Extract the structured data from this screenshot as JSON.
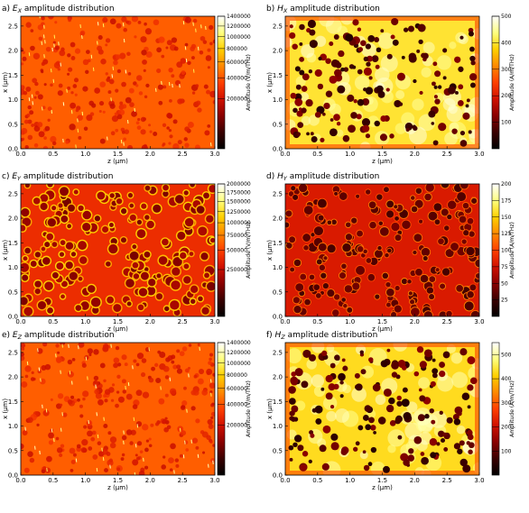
{
  "chart_data": [
    {
      "type": "heatmap",
      "title": "a) E_X amplitude distribution",
      "title_prefix": "a) ",
      "title_symbol": "E",
      "title_sub": "X",
      "title_suffix": " amplitude distribution",
      "xlabel": "z (μm)",
      "ylabel": "x (μm)",
      "xlim": [
        0.0,
        3.0
      ],
      "ylim": [
        0.0,
        2.7
      ],
      "xticks": [
        "0.0",
        "0.5",
        "1.0",
        "1.5",
        "2.0",
        "2.5",
        "3.0"
      ],
      "yticks": [
        "0.0",
        "0.5",
        "1.0",
        "1.5",
        "2.0",
        "2.5"
      ],
      "colorbar": {
        "label": "Amplitude (V/m/THz)",
        "scale": "sqrt",
        "range": [
          0,
          1400000
        ],
        "ticks": [
          "200000",
          "400000",
          "600000",
          "800000",
          "1000000",
          "1200000",
          "1400000"
        ],
        "tick_values": [
          200000,
          400000,
          600000,
          800000,
          1000000,
          1200000,
          1400000
        ]
      },
      "style": "e-dense",
      "base_level": 0.55
    },
    {
      "type": "heatmap",
      "title": "b) H_X amplitude distribution",
      "title_prefix": "b) ",
      "title_symbol": "H",
      "title_sub": "X",
      "title_suffix": " amplitude distribution",
      "xlabel": "z (μm)",
      "ylabel": "x (μm)",
      "xlim": [
        0.0,
        3.0
      ],
      "ylim": [
        0.0,
        2.7
      ],
      "xticks": [
        "0.0",
        "0.5",
        "1.0",
        "1.5",
        "2.0",
        "2.5",
        "3.0"
      ],
      "yticks": [
        "0.0",
        "0.5",
        "1.0",
        "1.5",
        "2.0",
        "2.5"
      ],
      "colorbar": {
        "label": "Amplitude (A/m/THz)",
        "scale": "linear",
        "range": [
          0,
          500
        ],
        "ticks": [
          "100",
          "200",
          "300",
          "400",
          "500"
        ],
        "tick_values": [
          100,
          200,
          300,
          400,
          500
        ]
      },
      "style": "h-bright",
      "base_level": 0.8
    },
    {
      "type": "heatmap",
      "title": "c) E_Y amplitude distribution",
      "title_prefix": "c) ",
      "title_symbol": "E",
      "title_sub": "Y",
      "title_suffix": " amplitude distribution",
      "xlabel": "z (μm)",
      "ylabel": "x (μm)",
      "xlim": [
        0.0,
        3.0
      ],
      "ylim": [
        0.0,
        2.7
      ],
      "xticks": [
        "0.0",
        "0.5",
        "1.0",
        "1.5",
        "2.0",
        "2.5",
        "3.0"
      ],
      "yticks": [
        "0.0",
        "0.5",
        "1.0",
        "1.5",
        "2.0",
        "2.5"
      ],
      "colorbar": {
        "label": "Amplitude (V/m/THz)",
        "scale": "sqrt",
        "range": [
          0,
          2000000
        ],
        "ticks": [
          "250000",
          "500000",
          "750000",
          "1000000",
          "1250000",
          "1500000",
          "1750000",
          "2000000"
        ],
        "tick_values": [
          250000,
          500000,
          750000,
          1000000,
          1250000,
          1500000,
          1750000,
          2000000
        ]
      },
      "style": "e-rings",
      "base_level": 0.45
    },
    {
      "type": "heatmap",
      "title": "d) H_Y amplitude distribution",
      "title_prefix": "d) ",
      "title_symbol": "H",
      "title_sub": "Y",
      "title_suffix": " amplitude distribution",
      "xlabel": "z (μm)",
      "ylabel": "x (μm)",
      "xlim": [
        0.0,
        3.0
      ],
      "ylim": [
        0.0,
        2.7
      ],
      "xticks": [
        "0.0",
        "0.5",
        "1.0",
        "1.5",
        "2.0",
        "2.5",
        "3.0"
      ],
      "yticks": [
        "0.0",
        "0.5",
        "1.0",
        "1.5",
        "2.0",
        "2.5"
      ],
      "colorbar": {
        "label": "Amplitude (A/m/THz)",
        "scale": "linear",
        "range": [
          0,
          200
        ],
        "ticks": [
          "25",
          "50",
          "75",
          "100",
          "125",
          "150",
          "175",
          "200"
        ],
        "tick_values": [
          25,
          50,
          75,
          100,
          125,
          150,
          175,
          200
        ]
      },
      "style": "h-dark",
      "base_level": 0.4
    },
    {
      "type": "heatmap",
      "title": "e) E_Z amplitude distribution",
      "title_prefix": "e) ",
      "title_symbol": "E",
      "title_sub": "Z",
      "title_suffix": " amplitude distribution",
      "xlabel": "z (μm)",
      "ylabel": "x (μm)",
      "xlim": [
        0.0,
        3.0
      ],
      "ylim": [
        0.0,
        2.7
      ],
      "xticks": [
        "0.0",
        "0.5",
        "1.0",
        "1.5",
        "2.0",
        "2.5",
        "3.0"
      ],
      "yticks": [
        "0.0",
        "0.5",
        "1.0",
        "1.5",
        "2.0",
        "2.5"
      ],
      "colorbar": {
        "label": "Amplitude (V/m/THz)",
        "scale": "sqrt",
        "range": [
          0,
          1400000
        ],
        "ticks": [
          "200000",
          "400000",
          "600000",
          "800000",
          "1000000",
          "1200000",
          "1400000"
        ],
        "tick_values": [
          200000,
          400000,
          600000,
          800000,
          1000000,
          1200000,
          1400000
        ]
      },
      "style": "e-dense",
      "base_level": 0.55
    },
    {
      "type": "heatmap",
      "title": "f) H_Z amplitude distribution",
      "title_prefix": "f) ",
      "title_symbol": "H",
      "title_sub": "Z",
      "title_suffix": " amplitude distribution",
      "xlabel": "z (μm)",
      "ylabel": "x (μm)",
      "xlim": [
        0.0,
        3.0
      ],
      "ylim": [
        0.0,
        2.7
      ],
      "xticks": [
        "0.0",
        "0.5",
        "1.0",
        "1.5",
        "2.0",
        "2.5",
        "3.0"
      ],
      "yticks": [
        "0.0",
        "0.5",
        "1.0",
        "1.5",
        "2.0",
        "2.5"
      ],
      "colorbar": {
        "label": "Amplitude (A/m/THz)",
        "scale": "linear",
        "range": [
          0,
          550
        ],
        "ticks": [
          "100",
          "200",
          "300",
          "400",
          "500"
        ],
        "tick_values": [
          100,
          200,
          300,
          400,
          500
        ]
      },
      "style": "h-bright",
      "base_level": 0.78
    }
  ],
  "colors": {
    "colormap": [
      "#000000",
      "#3a0000",
      "#8a0000",
      "#d01000",
      "#ff4000",
      "#ff8a00",
      "#ffd000",
      "#ffff80",
      "#ffffff"
    ]
  }
}
